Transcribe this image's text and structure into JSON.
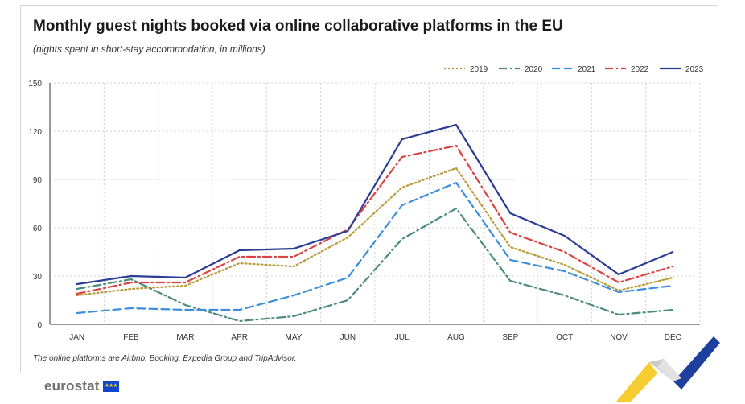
{
  "chart_data": {
    "type": "line",
    "title": "Monthly guest nights booked via online collaborative platforms in the EU",
    "subtitle": "(nights spent in short-stay accommodation, in millions)",
    "categories": [
      "JAN",
      "FEB",
      "MAR",
      "APR",
      "MAY",
      "JUN",
      "JUL",
      "AUG",
      "SEP",
      "OCT",
      "NOV",
      "DEC"
    ],
    "ylim": [
      0,
      150
    ],
    "yticks": [
      "0",
      "30",
      "60",
      "90",
      "120",
      "150"
    ],
    "grid": true,
    "legend_position": "top-right",
    "series": [
      {
        "name": "2019",
        "color": "#b89b3c",
        "dash": "dotted",
        "values": [
          18,
          22,
          24,
          38,
          36,
          54,
          85,
          97,
          48,
          37,
          21,
          29
        ]
      },
      {
        "name": "2020",
        "color": "#4b8c7c",
        "dash": "dashdot",
        "values": [
          22,
          28,
          12,
          2,
          5,
          15,
          53,
          72,
          27,
          18,
          6,
          9
        ]
      },
      {
        "name": "2021",
        "color": "#3c8fdd",
        "dash": "dashed",
        "values": [
          7,
          10,
          9,
          9,
          18,
          29,
          74,
          88,
          40,
          33,
          20,
          24
        ]
      },
      {
        "name": "2022",
        "color": "#d94343",
        "dash": "dashdot",
        "values": [
          19,
          26,
          26,
          42,
          42,
          59,
          104,
          111,
          57,
          45,
          26,
          36
        ]
      },
      {
        "name": "2023",
        "color": "#2b3c96",
        "dash": "solid",
        "values": [
          25,
          30,
          29,
          46,
          47,
          58,
          115,
          124,
          69,
          55,
          31,
          45
        ]
      }
    ]
  },
  "footnote": "The online platforms are Airbnb, Booking, Expedia Group and TripAdvisor.",
  "logo": {
    "text": "eurostat",
    "flag_stars": "★★★"
  }
}
